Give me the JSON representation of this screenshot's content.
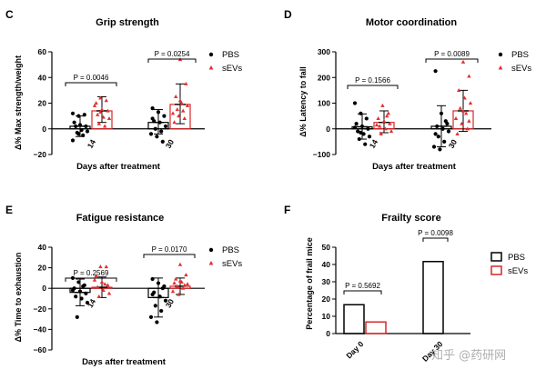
{
  "figure": {
    "watermark": "知乎 @药研网",
    "colors": {
      "pbs": "#000000",
      "sevs": "#d62728",
      "sevs_points": "#e03030"
    }
  },
  "chart_data": [
    {
      "panel": "C",
      "type": "bar",
      "title": "Grip strength",
      "xlabel": "Days after treatment",
      "ylabel": "Δ% Max strength/weight",
      "ylim": [
        -20,
        60
      ],
      "yticks": [
        "60",
        "40",
        "20",
        "0",
        "−20"
      ],
      "categories": [
        "14",
        "30"
      ],
      "legend": [
        "PBS",
        "sEVs"
      ],
      "series": [
        {
          "name": "PBS",
          "mean": [
            2,
            5
          ],
          "sd": [
            [
              -6,
              10
            ],
            [
              -4,
              15
            ]
          ],
          "points": [
            [
              12,
              10,
              11,
              5,
              3,
              2,
              2,
              -1,
              -2,
              -3,
              -5,
              -9,
              -4
            ],
            [
              16,
              13,
              10,
              6,
              5,
              2,
              0,
              -2,
              -4,
              -6,
              -10,
              8
            ]
          ]
        },
        {
          "name": "sEVs",
          "mean": [
            14,
            19
          ],
          "sd": [
            [
              5,
              25
            ],
            [
              4,
              35
            ]
          ],
          "points": [
            [
              24,
              22,
              20,
              15,
              14,
              11,
              9,
              8,
              4,
              2,
              18,
              13
            ],
            [
              54,
              35,
              25,
              20,
              18,
              15,
              14,
              12,
              10,
              8,
              5,
              22
            ]
          ]
        }
      ],
      "pvalues": [
        {
          "label": "P = 0.0046",
          "category": "14"
        },
        {
          "label": "P = 0.0254",
          "category": "30"
        }
      ]
    },
    {
      "panel": "D",
      "type": "bar",
      "title": "Motor coordination",
      "xlabel": "Days after treatment",
      "ylabel": "Δ% Latency to fall",
      "ylim": [
        -100,
        300
      ],
      "yticks": [
        "300",
        "200",
        "100",
        "0",
        "−100"
      ],
      "categories": [
        "14",
        "30"
      ],
      "legend": [
        "PBS",
        "sEVs"
      ],
      "series": [
        {
          "name": "PBS",
          "mean": [
            8,
            10
          ],
          "sd": [
            [
              -40,
              58
            ],
            [
              -70,
              90
            ]
          ],
          "points": [
            [
              100,
              60,
              40,
              20,
              10,
              0,
              -10,
              -20,
              -30,
              -40,
              -60,
              5,
              -15
            ],
            [
              225,
              60,
              20,
              10,
              0,
              -10,
              -30,
              -50,
              -70,
              -80,
              30,
              -20
            ]
          ]
        },
        {
          "name": "sEVs",
          "mean": [
            25,
            70
          ],
          "sd": [
            [
              -15,
              70
            ],
            [
              -10,
              150
            ]
          ],
          "points": [
            [
              90,
              60,
              40,
              30,
              20,
              10,
              0,
              -10,
              -20,
              50,
              15
            ],
            [
              260,
              205,
              150,
              120,
              100,
              80,
              60,
              40,
              20,
              0,
              -20,
              70,
              30
            ]
          ]
        }
      ],
      "pvalues": [
        {
          "label": "P = 0.1566",
          "category": "14"
        },
        {
          "label": "P = 0.0089",
          "category": "30"
        }
      ]
    },
    {
      "panel": "E",
      "type": "bar",
      "title": "Fatigue resistance",
      "xlabel": "Days after treatment",
      "ylabel": "Δ% Time to exhaustion",
      "ylim": [
        -60,
        40
      ],
      "yticks": [
        "40",
        "20",
        "0",
        "−20",
        "−40",
        "−60"
      ],
      "categories": [
        "14",
        "30"
      ],
      "legend": [
        "PBS",
        "sEVs"
      ],
      "series": [
        {
          "name": "PBS",
          "mean": [
            -4,
            -9
          ],
          "sd": [
            [
              -17,
              9
            ],
            [
              -28,
              10
            ]
          ],
          "points": [
            [
              10,
              6,
              3,
              0,
              -3,
              -5,
              -8,
              -10,
              -14,
              -28,
              2,
              -2
            ],
            [
              9,
              5,
              2,
              -4,
              -8,
              -12,
              -17,
              -22,
              -28,
              -33,
              0,
              -6
            ]
          ]
        },
        {
          "name": "sEVs",
          "mean": [
            1,
            2
          ],
          "sd": [
            [
              -9,
              11
            ],
            [
              -6,
              10
            ]
          ],
          "points": [
            [
              21,
              21,
              12,
              6,
              3,
              1,
              -2,
              -5,
              -8,
              4,
              8
            ],
            [
              23,
              13,
              9,
              6,
              4,
              2,
              0,
              -3,
              -6,
              3,
              5,
              7
            ]
          ]
        }
      ],
      "pvalues": [
        {
          "label": "P = 0.2569",
          "category": "14"
        },
        {
          "label": "P = 0.0170",
          "category": "30"
        }
      ]
    },
    {
      "panel": "F",
      "type": "bar",
      "title": "Frailty score",
      "xlabel": "",
      "ylabel": "Percentage of frail mice",
      "ylim": [
        0,
        50
      ],
      "yticks": [
        "50",
        "40",
        "30",
        "20",
        "10",
        "0"
      ],
      "categories": [
        "Day 0",
        "Day 30"
      ],
      "legend": [
        "PBS",
        "sEVs"
      ],
      "series": [
        {
          "name": "PBS",
          "values": [
            16.7,
            41.7
          ]
        },
        {
          "name": "sEVs",
          "values": [
            6.7,
            0
          ]
        }
      ],
      "pvalues": [
        {
          "label": "P = 0.5692",
          "category": "Day 0"
        },
        {
          "label": "P = 0.0098",
          "category": "Day 30"
        }
      ]
    }
  ]
}
